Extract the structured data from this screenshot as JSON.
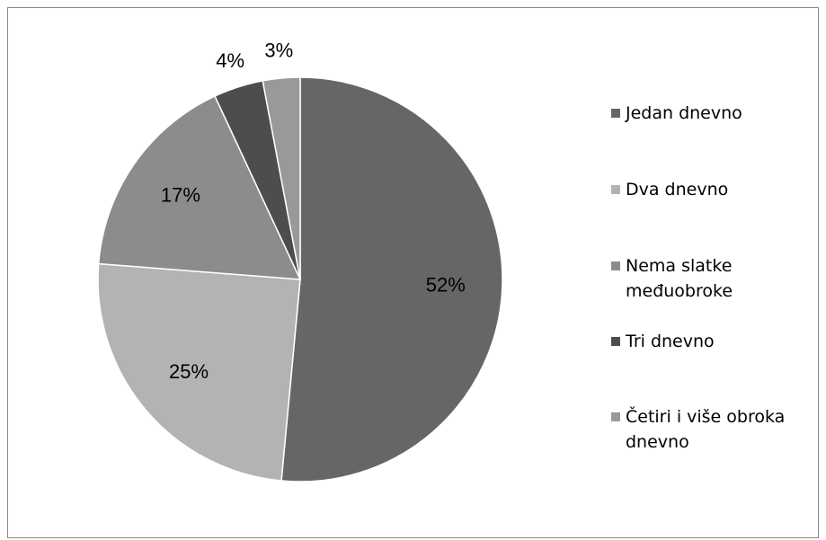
{
  "chart_data": {
    "type": "pie",
    "categories": [
      "Jedan dnevno",
      "Dva dnevno",
      "Nema slatke međuobroke",
      "Tri dnevno",
      "Četiri i više obroka dnevno"
    ],
    "values": [
      52,
      25,
      17,
      4,
      3
    ],
    "value_labels": [
      "52%",
      "25%",
      "17%",
      "4%",
      "3%"
    ],
    "colors": [
      "#666666",
      "#b3b3b3",
      "#8c8c8c",
      "#4d4d4d",
      "#999999"
    ],
    "legend": "right"
  }
}
